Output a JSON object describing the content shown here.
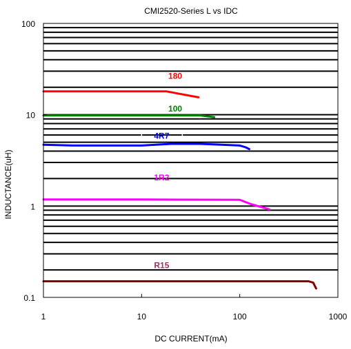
{
  "chart_data": {
    "type": "line",
    "title": "CMI2520-Series  L vs IDC",
    "xlabel": "DC CURRENT(mA)",
    "ylabel": "INDUCTANCE(uH)",
    "x_scale": "log",
    "y_scale": "log",
    "xlim": [
      1,
      1000
    ],
    "ylim": [
      0.1,
      100
    ],
    "x_ticks": [
      1,
      10,
      100,
      1000
    ],
    "x_tick_labels": [
      "1",
      "10",
      "100",
      "1000"
    ],
    "y_ticks": [
      0.1,
      1,
      10,
      100
    ],
    "y_tick_labels": [
      "0.1",
      "1",
      "10",
      "100"
    ],
    "grid": "horizontal",
    "series": [
      {
        "name": "180",
        "color": "#ff0000",
        "x": [
          1,
          10,
          18,
          38
        ],
        "y": [
          18,
          18,
          18,
          15.5
        ]
      },
      {
        "name": "100",
        "color": "#008000",
        "x": [
          1,
          10,
          40,
          55
        ],
        "y": [
          9.8,
          9.8,
          9.8,
          9.4
        ]
      },
      {
        "name": "4R7",
        "color": "#0000ff",
        "x": [
          1,
          2,
          10,
          20,
          40,
          100,
          115,
          125
        ],
        "y": [
          4.7,
          4.6,
          4.6,
          4.8,
          4.8,
          4.6,
          4.4,
          4.2
        ]
      },
      {
        "name": "1R2",
        "color": "#ff00ff",
        "x": [
          1,
          10,
          100,
          130,
          200
        ],
        "y": [
          1.18,
          1.18,
          1.17,
          1.05,
          0.92
        ]
      },
      {
        "name": "R15",
        "color": "#800000",
        "x": [
          1,
          10,
          100,
          500,
          560,
          600
        ],
        "y": [
          0.15,
          0.15,
          0.15,
          0.15,
          0.145,
          0.125
        ]
      }
    ],
    "label_colors": {
      "180": "#ff0000",
      "100": "#008000",
      "4R7": "#0000ff",
      "1R2": "#ff00ff",
      "R15": "#993366"
    }
  }
}
